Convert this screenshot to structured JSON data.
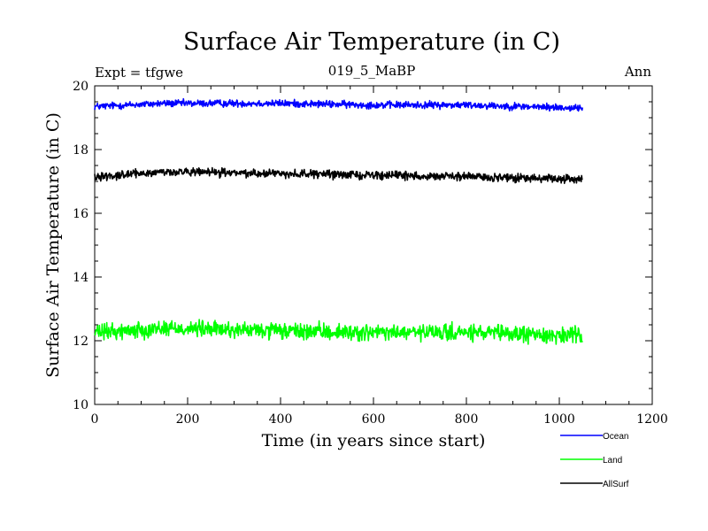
{
  "chart_data": {
    "type": "line",
    "title": "Surface Air Temperature (in C)",
    "subtitle": "019_5_MaBP",
    "header_left": "Expt = tfgwe",
    "header_right": "Ann",
    "xlabel": "Time (in years since start)",
    "ylabel": "Surface Air Temperature (in C)",
    "xlim": [
      0,
      1200
    ],
    "ylim": [
      10,
      20
    ],
    "x_ticks": [
      0,
      200,
      400,
      600,
      800,
      1000,
      1200
    ],
    "y_ticks": [
      10,
      12,
      14,
      16,
      18,
      20
    ],
    "x_tick_labels": [
      "0",
      "200",
      "400",
      "600",
      "800",
      "1000",
      "1200"
    ],
    "y_tick_labels": [
      "10",
      "12",
      "14",
      "16",
      "18",
      "20"
    ],
    "legend_position": "bottom-right",
    "series": [
      {
        "name": "Ocean",
        "color": "#0000ff",
        "mean": 19.4,
        "noise": 0.08,
        "x_start": 0,
        "x_end": 1050,
        "keypoints": [
          [
            0,
            19.35
          ],
          [
            150,
            19.45
          ],
          [
            400,
            19.45
          ],
          [
            600,
            19.4
          ],
          [
            800,
            19.4
          ],
          [
            1050,
            19.3
          ]
        ]
      },
      {
        "name": "Land",
        "color": "#00ff00",
        "mean": 12.25,
        "noise": 0.18,
        "x_start": 0,
        "x_end": 1050,
        "keypoints": [
          [
            0,
            12.25
          ],
          [
            150,
            12.4
          ],
          [
            400,
            12.3
          ],
          [
            600,
            12.25
          ],
          [
            800,
            12.25
          ],
          [
            1050,
            12.15
          ]
        ]
      },
      {
        "name": "AllSurf",
        "color": "#000000",
        "mean": 17.2,
        "noise": 0.09,
        "x_start": 0,
        "x_end": 1050,
        "keypoints": [
          [
            0,
            17.15
          ],
          [
            150,
            17.3
          ],
          [
            400,
            17.25
          ],
          [
            600,
            17.2
          ],
          [
            800,
            17.15
          ],
          [
            1050,
            17.05
          ]
        ]
      }
    ]
  }
}
